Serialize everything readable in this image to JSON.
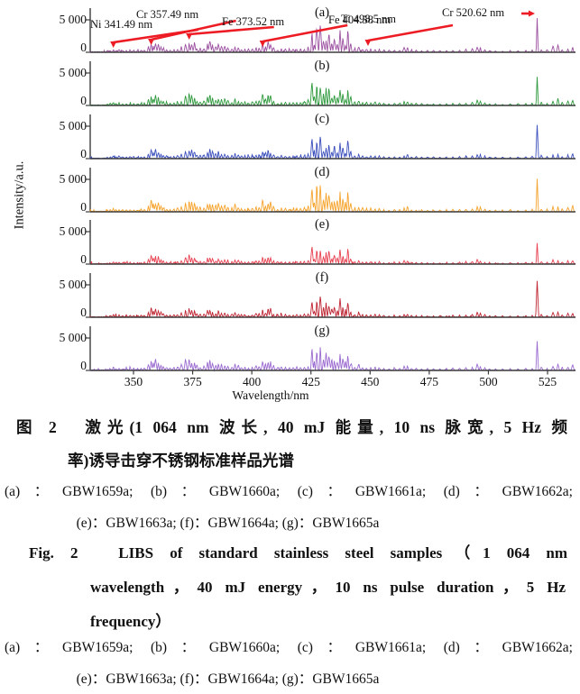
{
  "figure": {
    "caption_cn_lines": [
      "图 2　激光(1 064 nm 波长, 40 mJ 能量, 10 ns 脉宽, 5 Hz 频",
      "率)诱导击穿不锈钢标准样品光谱"
    ],
    "sample_list_lines": [
      "(a)：GBW1659a; (b)：GBW1660a; (c)：GBW1661a; (d)：GBW1662a;",
      "(e)：GBW1663a; (f)：GBW1664a; (g)：GBW1665a"
    ],
    "caption_en_lines": [
      "Fig. 2　LIBS of standard stainless steel samples（1 064 nm",
      "wavelength，40 mJ energy，10 ns pulse duration，5 Hz",
      "frequency）"
    ]
  },
  "chart_data": {
    "type": "line",
    "xlabel": "Wavelength/nm",
    "ylabel": "Intensity/a.u.",
    "x_ticks": [
      "350",
      "375",
      "400",
      "425",
      "450",
      "475",
      "500",
      "525"
    ],
    "xlim": [
      331.7,
      536.8
    ],
    "y_tick_labels": [
      "5 000",
      "0"
    ],
    "ylim": [
      0,
      6800
    ],
    "grid": false,
    "arrow_color": "#ed1c24",
    "axis_color": "#3b3b3b",
    "annotations": [
      {
        "element": "Ni",
        "label": "Ni 341.49 nm",
        "wavelength_nm": 341.49
      },
      {
        "element": "Cr",
        "label": "Cr 357.49 nm",
        "wavelength_nm": 357.49
      },
      {
        "element": "Fe",
        "label": "Fe 373.52 nm",
        "wavelength_nm": 373.52
      },
      {
        "element": "Fe",
        "label": "Fe 404.58 nm",
        "wavelength_nm": 404.58
      },
      {
        "element": "Ti",
        "label": "Ti 498.5 nm",
        "wavelength_nm": 498.5
      },
      {
        "element": "Cr",
        "label": "Cr 520.62 nm",
        "wavelength_nm": 520.62
      }
    ],
    "panels": [
      {
        "label": "(a)",
        "sample": "GBW1659a",
        "color": "#9c51a1",
        "scale": 1.0,
        "peak_520_height": 5400
      },
      {
        "label": "(b)",
        "sample": "GBW1660a",
        "color": "#2f9a3e",
        "scale": 0.95,
        "peak_520_height": 4500
      },
      {
        "label": "(c)",
        "sample": "GBW1661a",
        "color": "#3c4fbd",
        "scale": 0.85,
        "peak_520_height": 5300
      },
      {
        "label": "(d)",
        "sample": "GBW1662a",
        "color": "#f5a32c",
        "scale": 1.05,
        "peak_520_height": 5200
      },
      {
        "label": "(e)",
        "sample": "GBW1663a",
        "color": "#e8404f",
        "scale": 0.72,
        "peak_520_height": 3300
      },
      {
        "label": "(f)",
        "sample": "GBW1664a",
        "color": "#bf2432",
        "scale": 0.82,
        "peak_520_height": 5700
      },
      {
        "label": "(g)",
        "sample": "GBW1665a",
        "color": "#9a6ad0",
        "scale": 1.0,
        "peak_520_height": 4600
      }
    ],
    "base_peaks": [
      [
        339.0,
        180
      ],
      [
        340.2,
        260
      ],
      [
        341.49,
        480
      ],
      [
        342.6,
        220
      ],
      [
        343.9,
        330
      ],
      [
        345.4,
        200
      ],
      [
        347.0,
        220
      ],
      [
        348.6,
        260
      ],
      [
        350.1,
        280
      ],
      [
        351.8,
        240
      ],
      [
        353.2,
        300
      ],
      [
        354.6,
        320
      ],
      [
        356.3,
        750
      ],
      [
        357.49,
        1650
      ],
      [
        358.4,
        1150
      ],
      [
        359.3,
        1500
      ],
      [
        360.5,
        1350
      ],
      [
        361.6,
        950
      ],
      [
        362.6,
        600
      ],
      [
        364.0,
        420
      ],
      [
        365.5,
        380
      ],
      [
        367.1,
        420
      ],
      [
        368.6,
        500
      ],
      [
        370.2,
        750
      ],
      [
        371.99,
        1450
      ],
      [
        373.52,
        1750
      ],
      [
        374.6,
        1350
      ],
      [
        375.8,
        1150
      ],
      [
        376.8,
        700
      ],
      [
        378.2,
        520
      ],
      [
        379.8,
        650
      ],
      [
        381.3,
        1250
      ],
      [
        382.3,
        1550
      ],
      [
        383.4,
        1150
      ],
      [
        384.8,
        850
      ],
      [
        385.9,
        1250
      ],
      [
        387.2,
        800
      ],
      [
        388.6,
        950
      ],
      [
        389.9,
        650
      ],
      [
        391.6,
        520
      ],
      [
        392.9,
        950
      ],
      [
        394.3,
        700
      ],
      [
        395.6,
        480
      ],
      [
        397.1,
        420
      ],
      [
        398.6,
        380
      ],
      [
        400.2,
        520
      ],
      [
        401.8,
        620
      ],
      [
        403.1,
        700
      ],
      [
        404.58,
        1550
      ],
      [
        405.8,
        900
      ],
      [
        406.9,
        1650
      ],
      [
        407.9,
        1350
      ],
      [
        409.2,
        620
      ],
      [
        410.9,
        380
      ],
      [
        412.5,
        480
      ],
      [
        414.2,
        420
      ],
      [
        415.9,
        350
      ],
      [
        417.5,
        380
      ],
      [
        419.0,
        420
      ],
      [
        420.6,
        480
      ],
      [
        422.2,
        560
      ],
      [
        423.8,
        700
      ],
      [
        425.43,
        3450
      ],
      [
        426.4,
        1300
      ],
      [
        427.48,
        3900
      ],
      [
        428.97,
        3550
      ],
      [
        430.3,
        1700
      ],
      [
        431.4,
        2300
      ],
      [
        432.6,
        2650
      ],
      [
        433.8,
        1500
      ],
      [
        434.9,
        2050
      ],
      [
        436.1,
        1450
      ],
      [
        437.3,
        2950
      ],
      [
        438.5,
        1850
      ],
      [
        439.6,
        1200
      ],
      [
        440.6,
        3150
      ],
      [
        441.8,
        1250
      ],
      [
        443.5,
        550
      ],
      [
        445.2,
        750
      ],
      [
        446.8,
        520
      ],
      [
        448.5,
        420
      ],
      [
        450.3,
        480
      ],
      [
        452.1,
        520
      ],
      [
        453.9,
        420
      ],
      [
        455.8,
        320
      ],
      [
        458.0,
        280
      ],
      [
        460.3,
        300
      ],
      [
        462.5,
        350
      ],
      [
        464.4,
        620
      ],
      [
        465.8,
        750
      ],
      [
        467.5,
        350
      ],
      [
        469.5,
        280
      ],
      [
        471.8,
        260
      ],
      [
        474.2,
        240
      ],
      [
        476.8,
        260
      ],
      [
        479.5,
        230
      ],
      [
        482.3,
        260
      ],
      [
        485.0,
        300
      ],
      [
        487.8,
        330
      ],
      [
        490.5,
        380
      ],
      [
        493.2,
        450
      ],
      [
        495.3,
        850
      ],
      [
        496.6,
        650
      ],
      [
        498.5,
        380
      ],
      [
        500.5,
        280
      ],
      [
        503.0,
        260
      ],
      [
        506.0,
        230
      ],
      [
        509.2,
        240
      ],
      [
        512.5,
        260
      ],
      [
        515.8,
        300
      ],
      [
        518.5,
        340
      ],
      [
        522.4,
        520
      ],
      [
        524.8,
        320
      ],
      [
        527.3,
        750
      ],
      [
        529.4,
        950
      ],
      [
        531.2,
        450
      ],
      [
        533.6,
        620
      ],
      [
        535.6,
        850
      ]
    ]
  }
}
